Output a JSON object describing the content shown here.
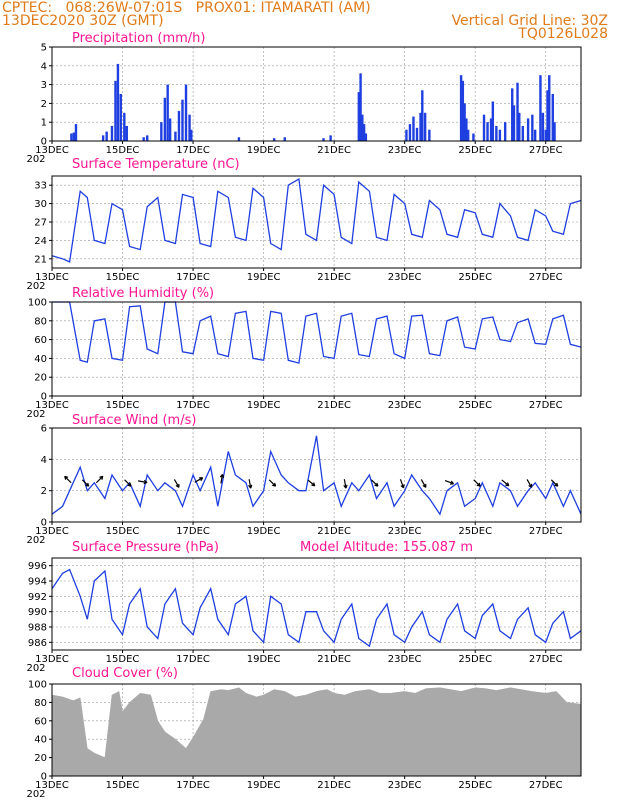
{
  "header": {
    "line1_left": "CPTEC:   068:26W-07:01S   PROX01: ITAMARATI (AM)",
    "line2_left": "13DEC2020 30Z (GMT)",
    "line2_right": "Vertical Grid Line: 30Z",
    "line3_right": "TQ0126L028"
  },
  "x_ticks": [
    "13DEC",
    "15DEC",
    "17DEC",
    "19DEC",
    "21DEC",
    "23DEC",
    "25DEC",
    "27DEC"
  ],
  "x_tick_sub": "202",
  "colors": {
    "line": "#1f3fe0",
    "bar": "#1f3fe0",
    "cloud": "#a9a9a9",
    "title": "#ff1493",
    "header": "#e07b1a"
  },
  "chart_data": [
    {
      "type": "bar",
      "title": "Precipitation (mm/h)",
      "ylim": [
        0,
        5
      ],
      "yticks": [
        "0",
        "1",
        "2",
        "3",
        "4",
        "5"
      ],
      "x_range_days": [
        0,
        15
      ],
      "points": [
        [
          0.55,
          0.4
        ],
        [
          0.62,
          0.45
        ],
        [
          0.68,
          0.9
        ],
        [
          1.45,
          0.3
        ],
        [
          1.55,
          0.5
        ],
        [
          1.7,
          0.8
        ],
        [
          1.8,
          3.2
        ],
        [
          1.87,
          4.1
        ],
        [
          1.95,
          2.5
        ],
        [
          2.05,
          1.5
        ],
        [
          2.12,
          0.8
        ],
        [
          2.6,
          0.2
        ],
        [
          2.7,
          0.3
        ],
        [
          3.1,
          1.0
        ],
        [
          3.2,
          2.3
        ],
        [
          3.28,
          3.0
        ],
        [
          3.35,
          1.2
        ],
        [
          3.5,
          0.5
        ],
        [
          3.6,
          1.6
        ],
        [
          3.7,
          2.2
        ],
        [
          3.8,
          3.0
        ],
        [
          3.9,
          1.4
        ],
        [
          3.95,
          0.6
        ],
        [
          5.3,
          0.2
        ],
        [
          6.3,
          0.15
        ],
        [
          6.6,
          0.2
        ],
        [
          7.7,
          0.15
        ],
        [
          7.9,
          0.3
        ],
        [
          8.7,
          2.6
        ],
        [
          8.75,
          3.6
        ],
        [
          8.8,
          1.4
        ],
        [
          8.85,
          0.9
        ],
        [
          8.9,
          0.4
        ],
        [
          10.05,
          0.6
        ],
        [
          10.15,
          0.9
        ],
        [
          10.25,
          1.3
        ],
        [
          10.35,
          0.7
        ],
        [
          10.45,
          1.5
        ],
        [
          10.5,
          2.7
        ],
        [
          10.58,
          1.5
        ],
        [
          10.7,
          0.6
        ],
        [
          11.6,
          3.5
        ],
        [
          11.65,
          3.2
        ],
        [
          11.7,
          2.0
        ],
        [
          11.75,
          1.2
        ],
        [
          11.8,
          0.6
        ],
        [
          11.95,
          0.4
        ],
        [
          12.25,
          1.4
        ],
        [
          12.35,
          1.0
        ],
        [
          12.45,
          1.2
        ],
        [
          12.5,
          2.1
        ],
        [
          12.6,
          0.8
        ],
        [
          12.7,
          0.6
        ],
        [
          12.85,
          1.0
        ],
        [
          13.05,
          2.8
        ],
        [
          13.1,
          1.9
        ],
        [
          13.2,
          3.1
        ],
        [
          13.25,
          1.5
        ],
        [
          13.35,
          0.8
        ],
        [
          13.5,
          1.2
        ],
        [
          13.62,
          1.4
        ],
        [
          13.7,
          0.6
        ],
        [
          13.85,
          3.5
        ],
        [
          13.92,
          1.5
        ],
        [
          14.0,
          0.6
        ],
        [
          14.05,
          2.7
        ],
        [
          14.1,
          3.5
        ],
        [
          14.2,
          2.5
        ],
        [
          14.25,
          1.0
        ]
      ]
    },
    {
      "type": "line",
      "title": "Surface Temperature (nC)",
      "ylim": [
        19.5,
        34.5
      ],
      "yticks": [
        "21",
        "24",
        "27",
        "30",
        "33"
      ],
      "x_range_days": [
        0,
        15
      ],
      "x": [
        0,
        0.3,
        0.5,
        0.8,
        1.0,
        1.2,
        1.5,
        1.7,
        2.0,
        2.2,
        2.5,
        2.7,
        3.0,
        3.2,
        3.5,
        3.7,
        4.0,
        4.2,
        4.5,
        4.7,
        5.0,
        5.2,
        5.5,
        5.7,
        6.0,
        6.2,
        6.5,
        6.7,
        7.0,
        7.2,
        7.5,
        7.7,
        8.0,
        8.2,
        8.5,
        8.7,
        9.0,
        9.2,
        9.5,
        9.7,
        10.0,
        10.2,
        10.5,
        10.7,
        11.0,
        11.2,
        11.5,
        11.7,
        12.0,
        12.2,
        12.5,
        12.7,
        13.0,
        13.2,
        13.5,
        13.7,
        14.0,
        14.2,
        14.5,
        14.7,
        15.0
      ],
      "y": [
        21.5,
        21,
        20.5,
        32,
        31,
        24,
        23.5,
        30,
        29,
        23,
        22.5,
        29.5,
        31,
        24,
        23.5,
        31.5,
        31,
        23.5,
        23,
        32,
        31,
        24.5,
        24,
        32.5,
        31,
        23.5,
        22.5,
        33,
        34,
        25,
        24,
        33,
        31.5,
        24.5,
        23.5,
        33.5,
        32,
        24.5,
        24,
        31.5,
        30,
        25,
        24.5,
        30.5,
        29,
        25,
        24.5,
        29,
        28.5,
        25,
        24.5,
        30,
        28,
        24.5,
        24,
        29,
        28,
        25.5,
        25,
        30,
        30.5
      ]
    },
    {
      "type": "line",
      "title": "Relative Humidity (%)",
      "ylim": [
        0,
        100
      ],
      "yticks": [
        "0",
        "20",
        "40",
        "60",
        "80",
        "100"
      ],
      "x_range_days": [
        0,
        15
      ],
      "x": [
        0,
        0.3,
        0.5,
        0.8,
        1.0,
        1.2,
        1.5,
        1.7,
        2.0,
        2.2,
        2.5,
        2.7,
        3.0,
        3.2,
        3.5,
        3.7,
        4.0,
        4.2,
        4.5,
        4.7,
        5.0,
        5.2,
        5.5,
        5.7,
        6.0,
        6.2,
        6.5,
        6.7,
        7.0,
        7.2,
        7.5,
        7.7,
        8.0,
        8.2,
        8.5,
        8.7,
        9.0,
        9.2,
        9.5,
        9.7,
        10.0,
        10.2,
        10.5,
        10.7,
        11.0,
        11.2,
        11.5,
        11.7,
        12.0,
        12.2,
        12.5,
        12.7,
        13.0,
        13.2,
        13.5,
        13.7,
        14.0,
        14.2,
        14.5,
        14.7,
        15.0
      ],
      "y": [
        100,
        100,
        100,
        38,
        36,
        80,
        82,
        40,
        38,
        95,
        96,
        50,
        45,
        100,
        100,
        47,
        45,
        80,
        85,
        45,
        42,
        88,
        90,
        40,
        38,
        90,
        88,
        38,
        35,
        85,
        88,
        42,
        40,
        85,
        88,
        44,
        42,
        82,
        85,
        45,
        40,
        85,
        86,
        45,
        43,
        80,
        84,
        52,
        50,
        82,
        84,
        60,
        58,
        78,
        82,
        56,
        55,
        82,
        86,
        55,
        52
      ]
    },
    {
      "type": "line",
      "title": "Surface Wind (m/s)",
      "ylim": [
        0,
        6
      ],
      "yticks": [
        "0",
        "2",
        "4",
        "6"
      ],
      "x_range_days": [
        0,
        15
      ],
      "x": [
        0,
        0.3,
        0.5,
        0.8,
        1.0,
        1.2,
        1.5,
        1.7,
        2.0,
        2.2,
        2.5,
        2.7,
        3.0,
        3.2,
        3.5,
        3.7,
        4.0,
        4.2,
        4.5,
        4.7,
        5.0,
        5.2,
        5.5,
        5.7,
        6.0,
        6.2,
        6.5,
        6.7,
        7.0,
        7.2,
        7.5,
        7.7,
        8.0,
        8.2,
        8.5,
        8.7,
        9.0,
        9.2,
        9.5,
        9.7,
        10.0,
        10.2,
        10.5,
        10.7,
        11.0,
        11.2,
        11.5,
        11.7,
        12.0,
        12.2,
        12.5,
        12.7,
        13.0,
        13.2,
        13.5,
        13.7,
        14.0,
        14.2,
        14.5,
        14.7,
        15.0
      ],
      "y": [
        0.5,
        1.0,
        2.0,
        3.5,
        2.0,
        2.5,
        1.5,
        3.0,
        2.0,
        2.5,
        1.0,
        3.0,
        2.0,
        2.5,
        2.0,
        1.0,
        3.0,
        2.0,
        3.5,
        1.0,
        4.5,
        3.0,
        2.5,
        1.0,
        2.0,
        4.5,
        3.0,
        2.5,
        2.0,
        2.0,
        5.5,
        2.0,
        2.5,
        1.0,
        2.5,
        2.0,
        3.0,
        1.5,
        2.5,
        1.0,
        2.0,
        3.0,
        2.0,
        1.5,
        0.5,
        2.0,
        2.5,
        1.0,
        1.5,
        2.5,
        1.0,
        2.5,
        2.0,
        1.0,
        2.0,
        2.5,
        1.5,
        2.5,
        1.0,
        2.0,
        0.5
      ],
      "arrows": [
        [
          0.5,
          135
        ],
        [
          0.9,
          -45
        ],
        [
          1.3,
          45
        ],
        [
          2.1,
          -45
        ],
        [
          2.5,
          -10
        ],
        [
          3.5,
          -60
        ],
        [
          4.1,
          30
        ],
        [
          4.8,
          80
        ],
        [
          5.6,
          -80
        ],
        [
          6.2,
          -45
        ],
        [
          7.3,
          -40
        ],
        [
          8.3,
          -80
        ],
        [
          9.1,
          -45
        ],
        [
          9.9,
          -70
        ],
        [
          10.5,
          -60
        ],
        [
          11.2,
          -20
        ],
        [
          12.0,
          -45
        ],
        [
          12.8,
          -40
        ],
        [
          13.5,
          -60
        ],
        [
          14.2,
          -45
        ]
      ]
    },
    {
      "type": "line",
      "title": "Surface Pressure (hPa)",
      "annotation": "Model Altitude: 155.087 m",
      "ylim": [
        985,
        997
      ],
      "yticks": [
        "986",
        "988",
        "990",
        "992",
        "994",
        "996"
      ],
      "x_range_days": [
        0,
        15
      ],
      "x": [
        0,
        0.3,
        0.5,
        0.8,
        1.0,
        1.2,
        1.5,
        1.7,
        2.0,
        2.2,
        2.5,
        2.7,
        3.0,
        3.2,
        3.5,
        3.7,
        4.0,
        4.2,
        4.5,
        4.7,
        5.0,
        5.2,
        5.5,
        5.7,
        6.0,
        6.2,
        6.5,
        6.7,
        7.0,
        7.2,
        7.5,
        7.7,
        8.0,
        8.2,
        8.5,
        8.7,
        9.0,
        9.2,
        9.5,
        9.7,
        10.0,
        10.2,
        10.5,
        10.7,
        11.0,
        11.2,
        11.5,
        11.7,
        12.0,
        12.2,
        12.5,
        12.7,
        13.0,
        13.2,
        13.5,
        13.7,
        14.0,
        14.2,
        14.5,
        14.7,
        15.0
      ],
      "y": [
        993,
        995,
        995.5,
        992,
        989,
        994,
        995.3,
        989,
        987,
        991,
        993,
        988,
        986.5,
        991,
        993,
        988.5,
        987,
        990.5,
        993,
        989,
        987,
        991,
        992,
        987.5,
        986,
        992,
        991,
        987,
        986,
        990,
        990,
        987.5,
        986,
        989,
        991,
        986.5,
        985.5,
        989,
        991,
        987,
        986,
        988,
        990,
        987,
        986,
        989,
        991,
        987.5,
        986.5,
        989.5,
        991,
        987.5,
        986.5,
        989,
        990.5,
        987,
        986,
        988.5,
        990,
        986.5,
        987.5
      ]
    },
    {
      "type": "area",
      "title": "Cloud Cover (%)",
      "ylim": [
        0,
        100
      ],
      "yticks": [
        "0",
        "20",
        "40",
        "60",
        "80",
        "100"
      ],
      "x_range_days": [
        0,
        15
      ],
      "x": [
        0,
        0.3,
        0.6,
        0.8,
        1.0,
        1.2,
        1.5,
        1.7,
        1.9,
        2.0,
        2.2,
        2.5,
        2.8,
        3.0,
        3.2,
        3.5,
        3.8,
        4.0,
        4.3,
        4.5,
        4.8,
        5.0,
        5.3,
        5.5,
        5.8,
        6.0,
        6.3,
        6.6,
        6.9,
        7.2,
        7.5,
        7.8,
        8.0,
        8.3,
        8.6,
        9.0,
        9.3,
        9.6,
        10.0,
        10.3,
        10.6,
        11.0,
        11.3,
        11.6,
        12.0,
        12.3,
        12.6,
        13.0,
        13.3,
        13.6,
        14.0,
        14.3,
        14.6,
        15.0
      ],
      "y": [
        88,
        86,
        82,
        85,
        30,
        25,
        20,
        88,
        92,
        70,
        80,
        90,
        88,
        60,
        48,
        40,
        30,
        42,
        62,
        92,
        94,
        93,
        96,
        90,
        86,
        88,
        94,
        92,
        86,
        88,
        92,
        94,
        90,
        88,
        92,
        94,
        90,
        90,
        92,
        90,
        95,
        96,
        94,
        92,
        96,
        95,
        93,
        96,
        94,
        92,
        90,
        92,
        80,
        78
      ]
    }
  ]
}
